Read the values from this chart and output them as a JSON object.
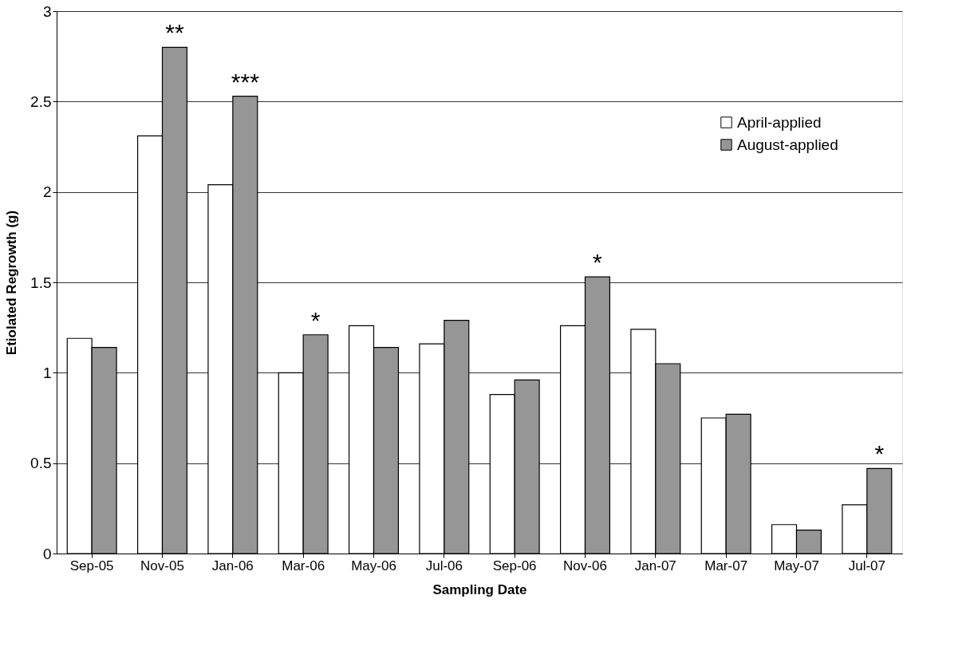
{
  "chart_data": {
    "type": "bar",
    "xlabel": "Sampling Date",
    "ylabel": "Etiolated Regrowth (g)",
    "categories": [
      "Sep-05",
      "Nov-05",
      "Jan-06",
      "Mar-06",
      "May-06",
      "Jul-06",
      "Sep-06",
      "Nov-06",
      "Jan-07",
      "Mar-07",
      "May-07",
      "Jul-07"
    ],
    "series": [
      {
        "name": "April-applied",
        "color": "#ffffff",
        "values": [
          1.19,
          2.31,
          2.04,
          1.0,
          1.26,
          1.16,
          0.88,
          1.26,
          1.24,
          0.75,
          0.16,
          0.27
        ]
      },
      {
        "name": "August-applied",
        "color": "#969696",
        "values": [
          1.14,
          2.8,
          2.53,
          1.21,
          1.14,
          1.29,
          0.96,
          1.53,
          1.05,
          0.77,
          0.13,
          0.47
        ]
      }
    ],
    "ylim": [
      0,
      3
    ],
    "yticks": [
      0,
      0.5,
      1,
      1.5,
      2,
      2.5,
      3
    ],
    "grid": "y",
    "legend": "top right",
    "annotations": [
      {
        "text": "**",
        "x": "Nov-05",
        "y": 2.8
      },
      {
        "text": "***",
        "x": "Jan-06",
        "y": 2.53
      },
      {
        "text": "*",
        "x": "Mar-06",
        "y": 1.21
      },
      {
        "text": "*",
        "x": "Nov-06",
        "y": 1.53
      },
      {
        "text": "*",
        "x": "Jul-07",
        "y": 0.47
      }
    ]
  }
}
